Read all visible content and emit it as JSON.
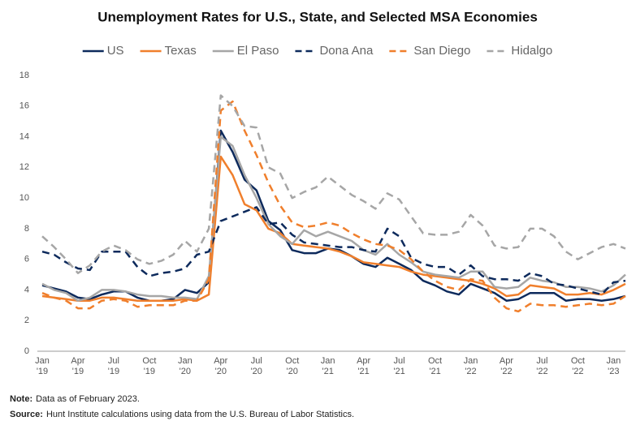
{
  "chart_data": {
    "type": "line",
    "title": "Unemployment Rates for U.S., State, and Selected MSA Economies",
    "categories": [
      "Jan '19",
      null,
      null,
      "Apr '19",
      null,
      null,
      "Jul '19",
      null,
      null,
      "Oct '19",
      null,
      null,
      "Jan '20",
      null,
      null,
      "Apr '20",
      null,
      null,
      "Jul '20",
      null,
      null,
      "Oct '20",
      null,
      null,
      "Jan '21",
      null,
      null,
      "Apr '21",
      null,
      null,
      "Jul '21",
      null,
      null,
      "Oct '21",
      null,
      null,
      "Jan '22",
      null,
      null,
      "Apr '22",
      null,
      null,
      "Jul '22",
      null,
      null,
      "Oct '22",
      null,
      null,
      "Jan '23",
      null
    ],
    "ylim": [
      0,
      18
    ],
    "yticks": [
      0,
      2,
      4,
      6,
      8,
      10,
      12,
      14,
      16,
      18
    ],
    "grid": false,
    "series": [
      {
        "name": "US",
        "color": "#0d2a5c",
        "dashed": false,
        "values": [
          4.3,
          4.1,
          3.9,
          3.5,
          3.4,
          3.7,
          3.9,
          3.9,
          3.5,
          3.3,
          3.3,
          3.4,
          4.0,
          3.8,
          4.5,
          14.4,
          13.0,
          11.2,
          10.5,
          8.5,
          7.9,
          6.6,
          6.4,
          6.4,
          6.7,
          6.6,
          6.2,
          5.7,
          5.5,
          6.1,
          5.7,
          5.3,
          4.6,
          4.3,
          3.9,
          3.7,
          4.4,
          4.1,
          3.8,
          3.3,
          3.4,
          3.8,
          3.8,
          3.8,
          3.3,
          3.4,
          3.4,
          3.3,
          3.4,
          3.6
        ]
      },
      {
        "name": "Texas",
        "color": "#f07f2c",
        "dashed": false,
        "values": [
          3.6,
          3.5,
          3.4,
          3.3,
          3.3,
          3.5,
          3.5,
          3.4,
          3.3,
          3.3,
          3.3,
          3.3,
          3.4,
          3.3,
          3.7,
          12.7,
          11.5,
          9.6,
          9.2,
          8.0,
          7.7,
          7.0,
          6.9,
          6.8,
          6.7,
          6.5,
          6.2,
          5.8,
          5.7,
          5.6,
          5.5,
          5.2,
          5.0,
          4.9,
          4.8,
          4.7,
          4.6,
          4.4,
          4.1,
          3.6,
          3.7,
          4.3,
          4.2,
          4.1,
          3.7,
          3.7,
          3.8,
          3.7,
          4.0,
          4.4
        ]
      },
      {
        "name": "El Paso",
        "color": "#a6a6a6",
        "dashed": false,
        "values": [
          4.4,
          4.0,
          3.8,
          3.3,
          3.5,
          4.0,
          4.0,
          3.9,
          3.7,
          3.6,
          3.6,
          3.5,
          3.5,
          3.4,
          4.9,
          14.0,
          13.4,
          11.5,
          10.0,
          8.3,
          7.5,
          7.0,
          7.9,
          7.5,
          7.8,
          7.5,
          7.2,
          6.6,
          6.3,
          7.0,
          6.3,
          5.8,
          5.2,
          5.0,
          4.9,
          4.8,
          5.2,
          5.2,
          4.2,
          4.1,
          4.2,
          4.8,
          4.6,
          4.5,
          4.2,
          4.2,
          4.1,
          3.9,
          4.3,
          5.0
        ]
      },
      {
        "name": "Dona Ana",
        "color": "#0d2a5c",
        "dashed": true,
        "values": [
          6.5,
          6.3,
          5.8,
          5.4,
          5.3,
          6.5,
          6.5,
          6.5,
          5.5,
          4.9,
          5.1,
          5.2,
          5.4,
          6.3,
          6.5,
          8.5,
          8.8,
          9.1,
          9.4,
          8.3,
          8.4,
          7.6,
          7.1,
          7.0,
          6.9,
          6.8,
          6.8,
          6.6,
          6.5,
          8.0,
          7.5,
          6.1,
          5.7,
          5.5,
          5.5,
          5.0,
          5.6,
          4.9,
          4.7,
          4.7,
          4.6,
          5.1,
          4.9,
          4.4,
          4.3,
          4.1,
          3.9,
          3.7,
          4.5,
          4.6
        ]
      },
      {
        "name": "San Diego",
        "color": "#f07f2c",
        "dashed": true,
        "values": [
          3.8,
          3.5,
          3.3,
          2.8,
          2.8,
          3.3,
          3.4,
          3.3,
          2.9,
          3.0,
          3.0,
          3.0,
          3.3,
          3.3,
          4.7,
          15.7,
          16.3,
          14.4,
          12.8,
          11.0,
          9.5,
          8.4,
          8.1,
          8.2,
          8.4,
          8.2,
          7.7,
          7.3,
          7.0,
          6.9,
          6.6,
          6.0,
          5.2,
          4.6,
          4.2,
          4.0,
          4.7,
          4.6,
          3.5,
          2.8,
          2.6,
          3.1,
          3.0,
          3.0,
          2.9,
          3.0,
          3.1,
          3.0,
          3.1,
          3.6
        ]
      },
      {
        "name": "Hidalgo",
        "color": "#a6a6a6",
        "dashed": true,
        "values": [
          7.5,
          6.8,
          6.0,
          5.1,
          5.6,
          6.5,
          6.9,
          6.6,
          6.0,
          5.7,
          5.9,
          6.3,
          7.2,
          6.5,
          8.0,
          16.7,
          16.0,
          14.7,
          14.6,
          12.0,
          11.6,
          10.0,
          10.4,
          10.7,
          11.4,
          10.8,
          10.2,
          9.8,
          9.3,
          10.3,
          9.9,
          8.8,
          7.7,
          7.6,
          7.6,
          7.8,
          8.9,
          8.2,
          6.9,
          6.7,
          6.8,
          8.0,
          8.0,
          7.5,
          6.5,
          6.0,
          6.4,
          6.8,
          7.0,
          6.7
        ]
      }
    ]
  },
  "notes": [
    {
      "label": "Note:",
      "text": "Data as of February 2023."
    },
    {
      "label": "Source:",
      "text": "Hunt Institute calculations using data from the U.S. Bureau of Labor Statistics."
    }
  ]
}
